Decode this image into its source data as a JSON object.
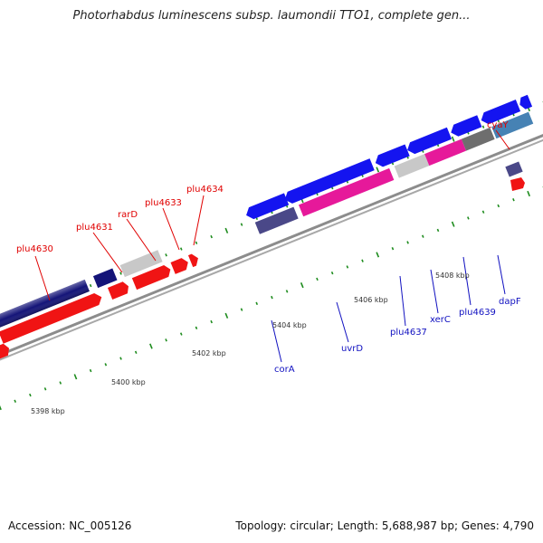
{
  "title": "Photorhabdus luminescens subsp. laumondii TTO1, complete gen...",
  "footer": {
    "accession": "Accession: NC_005126",
    "summary": "Topology: circular; Length: 5,688,987 bp; Genes: 4,790"
  },
  "colors": {
    "dark_navy": "#141478",
    "blue": "#1414f0",
    "red": "#f01414",
    "magenta": "#e6199a",
    "light_gray": "#c8c8c8",
    "dark_gray": "#6e6e6e",
    "slate": "#4a4888",
    "steel_blue": "#4682b4",
    "cyan": "#1ec8f0",
    "backbone": "#8c8c8c",
    "tick_green": "#1e8c1e",
    "label_red": "#e00000",
    "label_blue": "#1010c0"
  },
  "kbp_labels": [
    "5398 kbp",
    "5400 kbp",
    "5402 kbp",
    "5404 kbp",
    "5406 kbp",
    "5408 kbp"
  ],
  "labels_top": [
    "plu4630",
    "plu4631",
    "rarD",
    "plu4633",
    "plu4634",
    "cyaY"
  ],
  "labels_bottom": [
    "corA",
    "uvrD",
    "plu4637",
    "xerC",
    "plu4639",
    "dapF"
  ]
}
